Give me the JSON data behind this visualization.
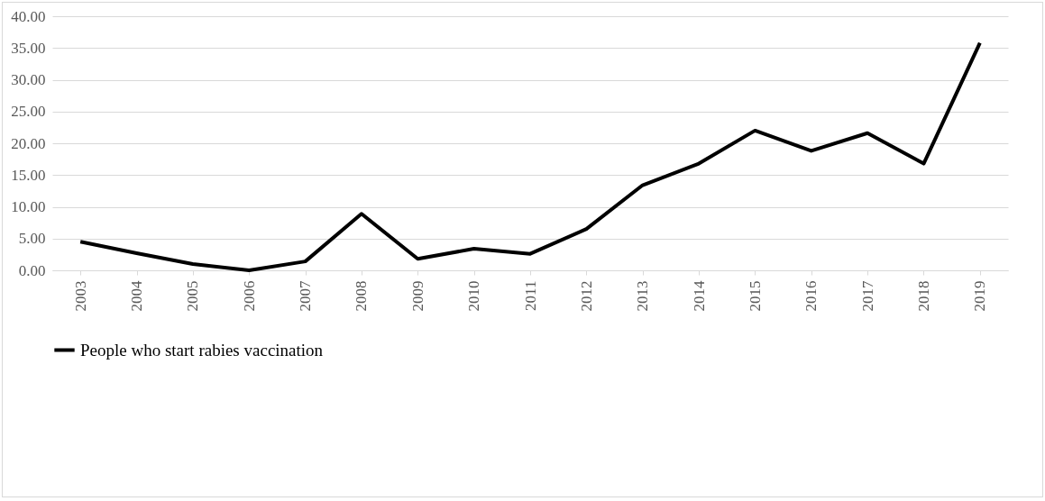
{
  "chart_data": {
    "type": "line",
    "categories": [
      "2003",
      "2004",
      "2005",
      "2006",
      "2007",
      "2008",
      "2009",
      "2010",
      "2011",
      "2012",
      "2013",
      "2014",
      "2015",
      "2016",
      "2017",
      "2018",
      "2019"
    ],
    "series": [
      {
        "name": "People who start rabies vaccination",
        "color": "#000000",
        "values": [
          4.5,
          2.7,
          1.0,
          0.0,
          1.4,
          8.9,
          1.8,
          3.4,
          2.6,
          6.5,
          13.4,
          16.8,
          22.0,
          18.8,
          21.6,
          16.8,
          35.8
        ]
      }
    ],
    "ylim": [
      0,
      40
    ],
    "yticks": [
      {
        "value": 0,
        "label": "0.00"
      },
      {
        "value": 5,
        "label": "5.00"
      },
      {
        "value": 10,
        "label": "10.00"
      },
      {
        "value": 15,
        "label": "15.00"
      },
      {
        "value": 20,
        "label": "20.00"
      },
      {
        "value": 25,
        "label": "25.00"
      },
      {
        "value": 30,
        "label": "30.00"
      },
      {
        "value": 35,
        "label": "35.00"
      },
      {
        "value": 40,
        "label": "40.00"
      }
    ],
    "grid": "y",
    "legend": "bottom",
    "marker": "none",
    "line_style": "solid"
  }
}
